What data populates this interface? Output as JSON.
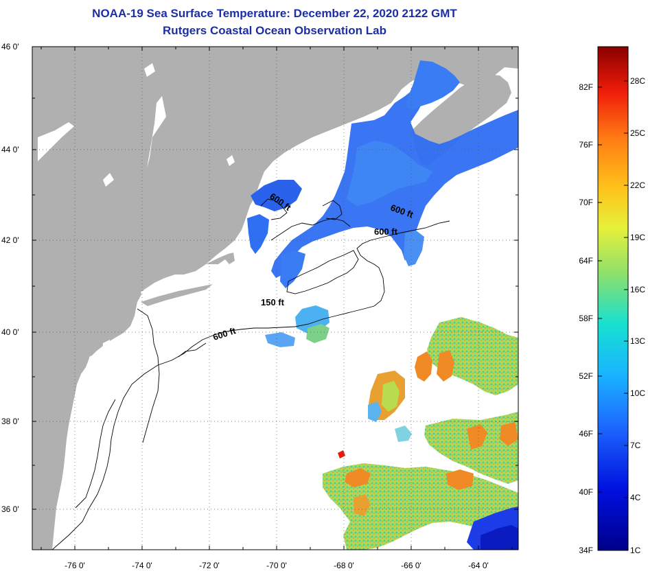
{
  "title": {
    "line1": "NOAA-19 Sea Surface Temperature:  December 22, 2020 2122 GMT",
    "line2": "Rutgers Coastal Ocean Observation Lab"
  },
  "map": {
    "lat_labels": [
      "46 0'",
      "44 0'",
      "42 0'",
      "40 0'",
      "38 0'",
      "36 0'"
    ],
    "lon_labels": [
      "-76 0'",
      "-74 0'",
      "-72 0'",
      "-70 0'",
      "-68 0'",
      "-66 0'",
      "-64 0'"
    ],
    "contour_labels": [
      "600 ft",
      "600 ft",
      "600 ft",
      "150 ft",
      "600 ft"
    ]
  },
  "colorbar": {
    "fahrenheit": [
      "82F",
      "76F",
      "70F",
      "64F",
      "58F",
      "52F",
      "46F",
      "40F",
      "34F"
    ],
    "celsius": [
      "28C",
      "25C",
      "22C",
      "19C",
      "16C",
      "13C",
      "10C",
      "7C",
      "4C",
      "1C"
    ]
  },
  "colors": {
    "land": "#b0b0b0",
    "water": "#ffffff",
    "title": "#1c2ea3"
  }
}
